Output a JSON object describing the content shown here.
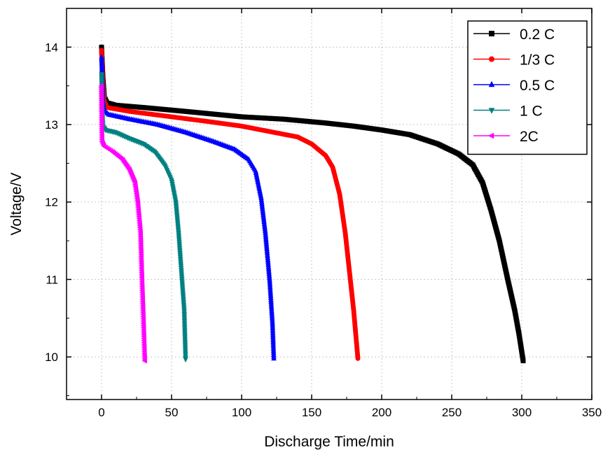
{
  "chart_data": {
    "type": "line",
    "xlabel": "Discharge Time/min",
    "ylabel": "Voltage/V",
    "xlim": [
      -25,
      350
    ],
    "ylim": [
      9.45,
      14.5
    ],
    "xticks": [
      0,
      50,
      100,
      150,
      200,
      250,
      300,
      350
    ],
    "yticks": [
      10,
      11,
      12,
      13,
      14
    ],
    "grid": true,
    "legend_position": "top-right",
    "series": [
      {
        "name": "0.2 C",
        "color": "#000000",
        "marker": "square",
        "points": [
          [
            0,
            14.0
          ],
          [
            1,
            13.6
          ],
          [
            2,
            13.35
          ],
          [
            4,
            13.28
          ],
          [
            10,
            13.25
          ],
          [
            30,
            13.22
          ],
          [
            60,
            13.17
          ],
          [
            100,
            13.1
          ],
          [
            130,
            13.07
          ],
          [
            160,
            13.02
          ],
          [
            180,
            12.98
          ],
          [
            200,
            12.93
          ],
          [
            220,
            12.87
          ],
          [
            240,
            12.75
          ],
          [
            255,
            12.62
          ],
          [
            265,
            12.48
          ],
          [
            272,
            12.25
          ],
          [
            278,
            11.9
          ],
          [
            284,
            11.5
          ],
          [
            290,
            11.0
          ],
          [
            295,
            10.6
          ],
          [
            298,
            10.3
          ],
          [
            301,
            9.95
          ]
        ]
      },
      {
        "name": "1/3 C",
        "color": "#ff0000",
        "marker": "circle",
        "points": [
          [
            0,
            13.96
          ],
          [
            1,
            13.5
          ],
          [
            2,
            13.3
          ],
          [
            4,
            13.22
          ],
          [
            20,
            13.17
          ],
          [
            50,
            13.1
          ],
          [
            80,
            13.03
          ],
          [
            100,
            12.98
          ],
          [
            120,
            12.91
          ],
          [
            140,
            12.84
          ],
          [
            150,
            12.75
          ],
          [
            160,
            12.6
          ],
          [
            165,
            12.45
          ],
          [
            170,
            12.1
          ],
          [
            174,
            11.6
          ],
          [
            177,
            11.1
          ],
          [
            180,
            10.6
          ],
          [
            183,
            9.98
          ]
        ]
      },
      {
        "name": "0.5 C",
        "color": "#0000ff",
        "marker": "triangle-up",
        "points": [
          [
            0,
            13.87
          ],
          [
            1,
            13.3
          ],
          [
            2,
            13.18
          ],
          [
            5,
            13.13
          ],
          [
            20,
            13.07
          ],
          [
            40,
            13.0
          ],
          [
            60,
            12.9
          ],
          [
            80,
            12.78
          ],
          [
            95,
            12.68
          ],
          [
            105,
            12.55
          ],
          [
            110,
            12.4
          ],
          [
            114,
            12.05
          ],
          [
            117,
            11.6
          ],
          [
            120,
            11.0
          ],
          [
            122,
            10.45
          ],
          [
            123,
            9.98
          ]
        ]
      },
      {
        "name": "1 C",
        "color": "#008080",
        "marker": "triangle-down",
        "points": [
          [
            0,
            13.65
          ],
          [
            0.5,
            13.2
          ],
          [
            1,
            12.98
          ],
          [
            3,
            12.93
          ],
          [
            10,
            12.9
          ],
          [
            20,
            12.82
          ],
          [
            30,
            12.75
          ],
          [
            38,
            12.65
          ],
          [
            45,
            12.48
          ],
          [
            50,
            12.28
          ],
          [
            53,
            12.0
          ],
          [
            55,
            11.6
          ],
          [
            57,
            11.1
          ],
          [
            59,
            10.6
          ],
          [
            60,
            9.97
          ]
        ]
      },
      {
        "name": "2C",
        "color": "#ff00ff",
        "marker": "triangle-left",
        "points": [
          [
            0,
            13.5
          ],
          [
            0.3,
            12.95
          ],
          [
            0.5,
            12.78
          ],
          [
            2,
            12.72
          ],
          [
            8,
            12.65
          ],
          [
            15,
            12.55
          ],
          [
            20,
            12.42
          ],
          [
            24,
            12.25
          ],
          [
            26,
            12.0
          ],
          [
            28,
            11.6
          ],
          [
            29,
            11.0
          ],
          [
            30,
            10.5
          ],
          [
            31,
            9.95
          ]
        ]
      }
    ]
  }
}
